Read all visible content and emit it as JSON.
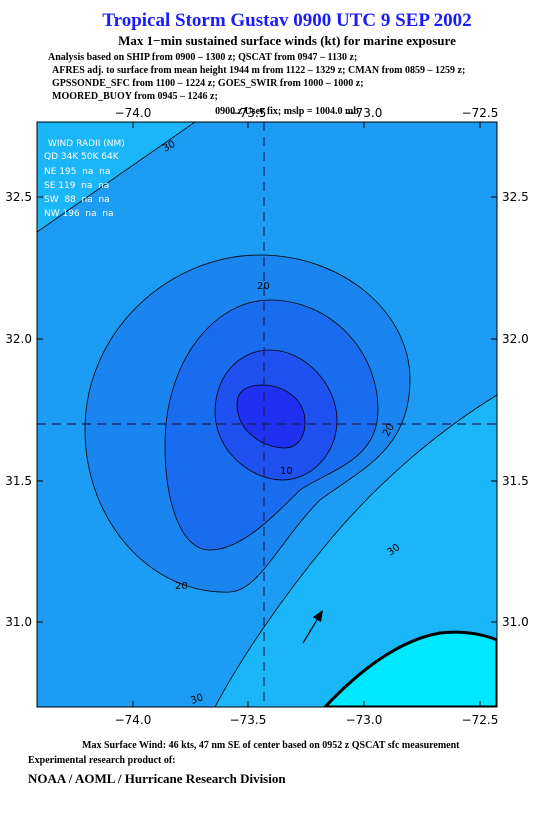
{
  "header": {
    "title": "Tropical Storm Gustav 0900 UTC 9 SEP 2002",
    "subtitle": "Max 1−min sustained surface winds (kt) for marine exposure",
    "analysis": [
      "Analysis based on  SHIP from 0900 – 1300 z;  QSCAT from 0947 – 1130 z;",
      "AFRES adj. to surface from mean height 1944 m from 1122 – 1329 z;  CMAN from 0859 – 1259 z;",
      "GPSSONDE_SFC from 1100 – 1224 z;  GOES_SWIR from 1000 – 1000 z;",
      "MOORED_BUOY from 0945 – 1246 z;"
    ],
    "fix": "0900 z User fix; mslp = 1004.0 mb"
  },
  "map": {
    "x_ticks": [
      "−74.0",
      "−73.5",
      "−73.0",
      "−72.5"
    ],
    "y_ticks": [
      "32.5",
      "32.0",
      "31.5",
      "31.0"
    ],
    "contour_labels": [
      "30",
      "20",
      "10",
      "20",
      "30",
      "20",
      "30"
    ],
    "wind_radii": {
      "title": "WIND RADII (NM)",
      "header": "QD 34K 50K 64K",
      "rows": [
        "NE 195  na  na",
        "SE 119  na  na",
        "SW  88  na  na",
        "NW 196  na  na"
      ]
    }
  },
  "footer": {
    "max_wind": "Max Surface Wind: 46 kts, 47 nm SE of center based on 0952 z QSCAT sfc measurement",
    "product": "Experimental research product of:",
    "org": "NOAA / AOML / Hurricane Research Division"
  }
}
